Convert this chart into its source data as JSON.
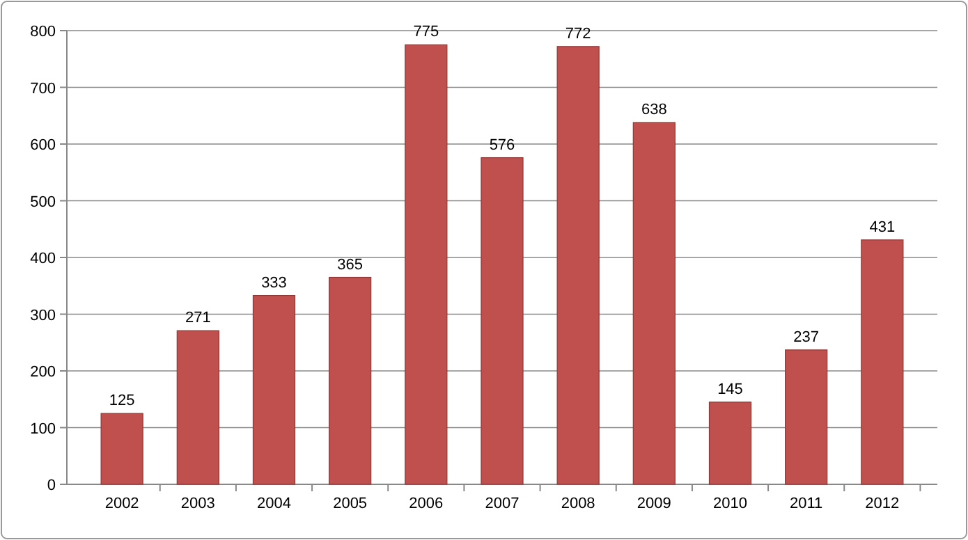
{
  "chart_data": {
    "type": "bar",
    "categories": [
      "2002",
      "2003",
      "2004",
      "2005",
      "2006",
      "2007",
      "2008",
      "2009",
      "2010",
      "2011",
      "2012"
    ],
    "values": [
      125,
      271,
      333,
      365,
      775,
      576,
      772,
      638,
      145,
      237,
      431
    ],
    "color": "#c0504d",
    "ylim": [
      0,
      800
    ],
    "yticks": [
      0,
      100,
      200,
      300,
      400,
      500,
      600,
      700,
      800
    ],
    "grid": "y",
    "data_labels": true
  }
}
